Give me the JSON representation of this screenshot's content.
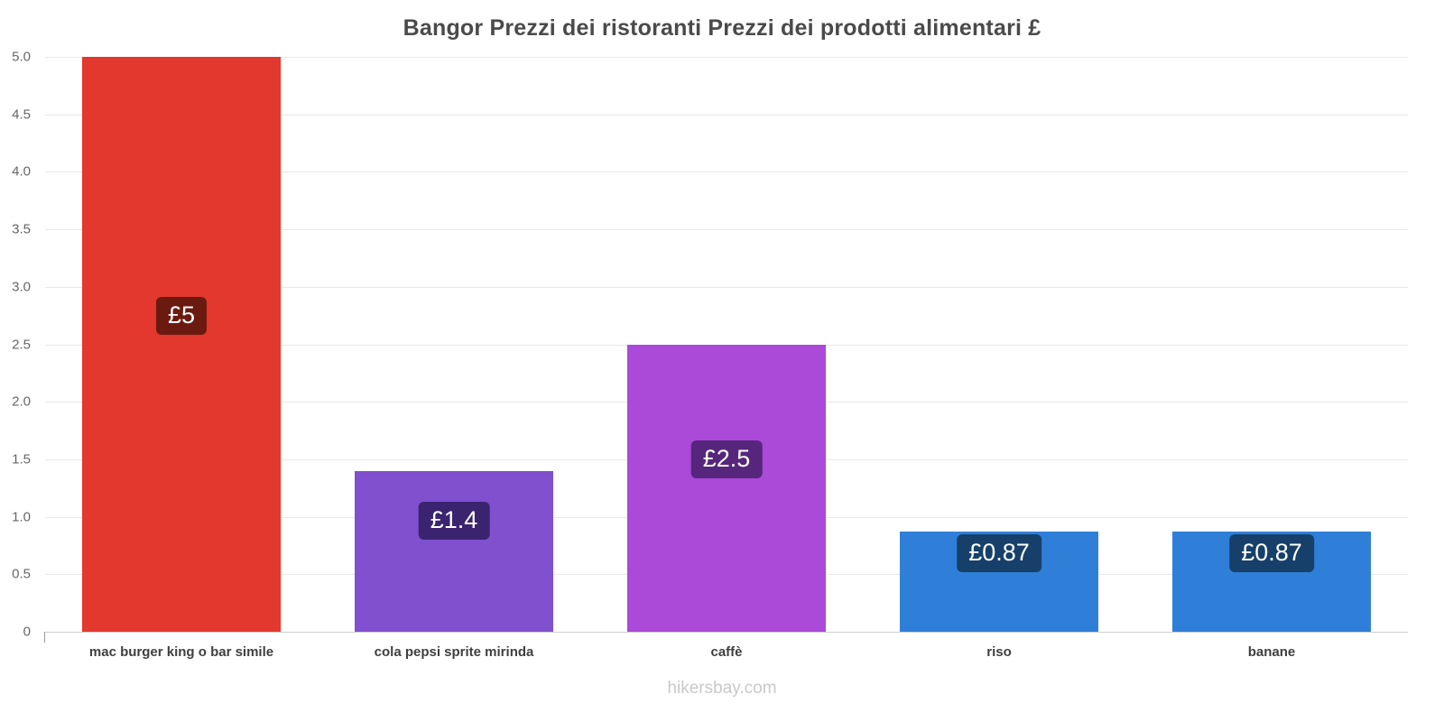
{
  "chart_data": {
    "type": "bar",
    "title": "Bangor Prezzi dei ristoranti Prezzi dei prodotti alimentari £",
    "categories": [
      "mac burger king o bar simile",
      "cola pepsi sprite mirinda",
      "caffè",
      "riso",
      "banane"
    ],
    "values": [
      5,
      1.4,
      2.5,
      0.87,
      0.87
    ],
    "value_labels": [
      "£5",
      "£1.4",
      "£2.5",
      "£0.87",
      "£0.87"
    ],
    "bar_colors": [
      "#e2382d",
      "#8050cf",
      "#ab49d8",
      "#2f7fd9",
      "#2f7fd9"
    ],
    "badge_colors": [
      "#6b1a10",
      "#3a2470",
      "#56267c",
      "#16406a",
      "#16406a"
    ],
    "ylim": [
      0,
      5
    ],
    "ytick_step": 0.5,
    "grid": true,
    "legend": "none",
    "currency": "£"
  },
  "footer": {
    "text": "hikersbay.com"
  }
}
